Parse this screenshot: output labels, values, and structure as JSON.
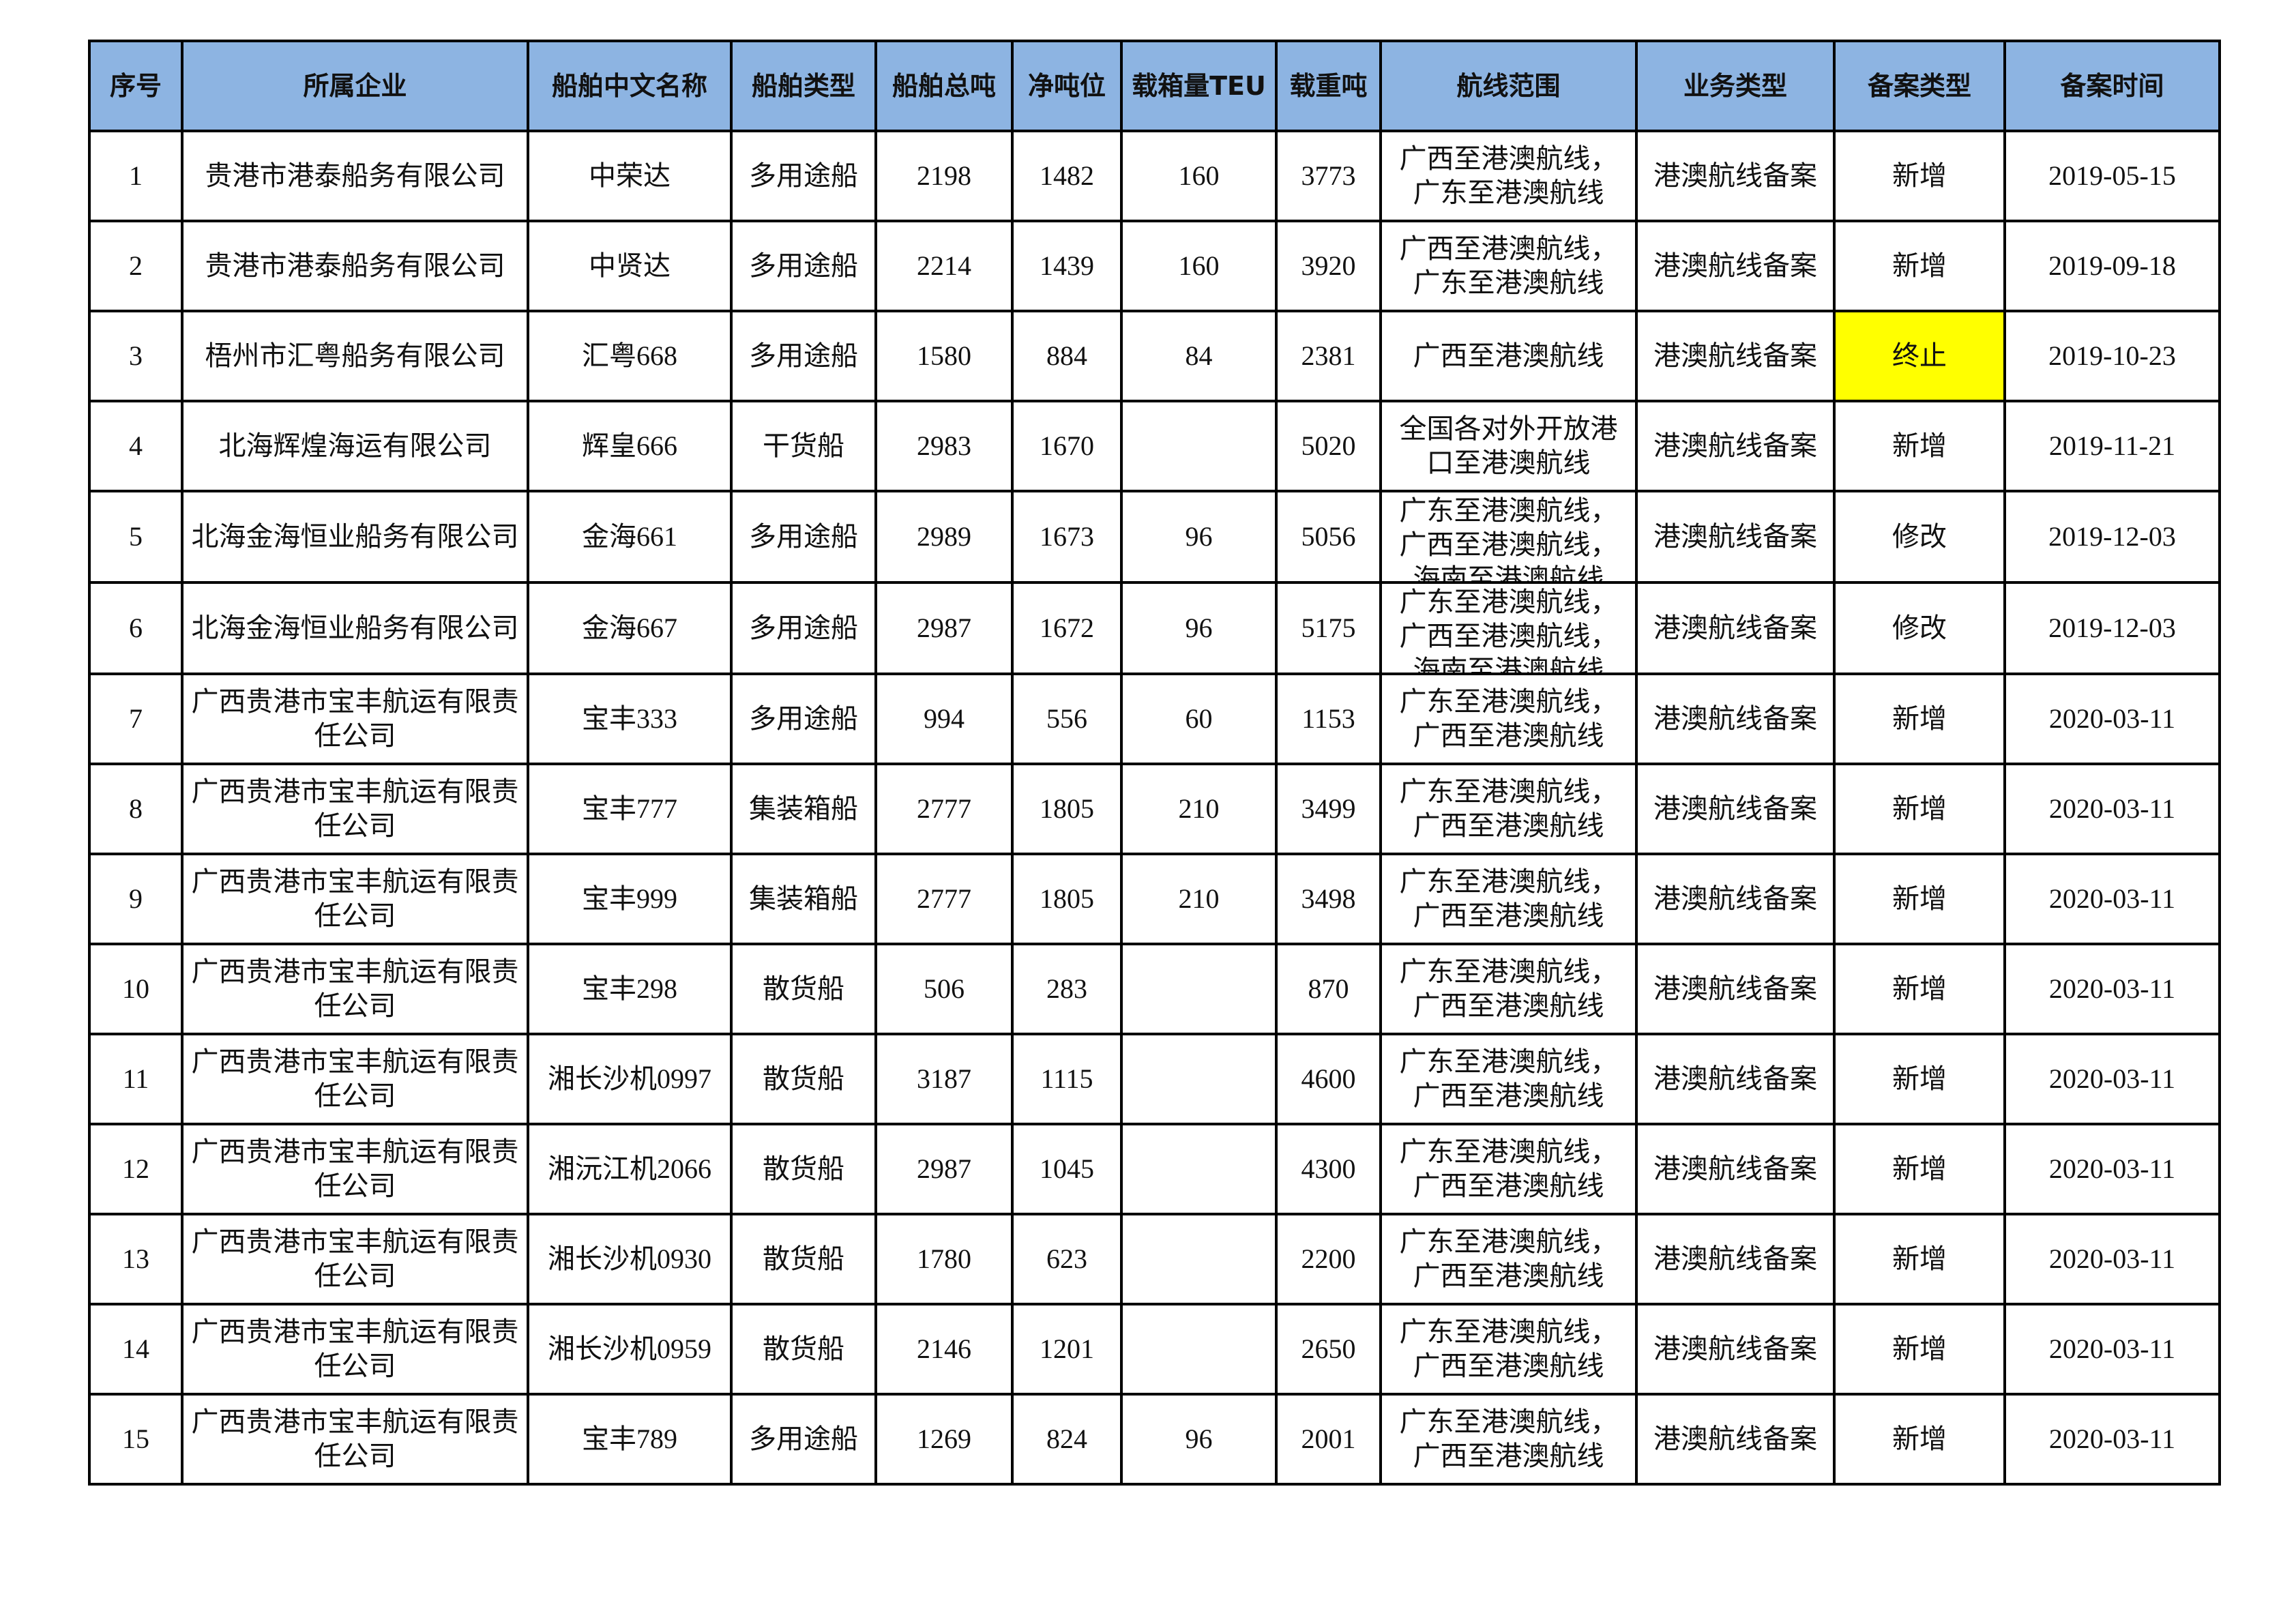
{
  "headers": [
    "序号",
    "所属企业",
    "船舶中文名称",
    "船舶类型",
    "船舶总吨",
    "净吨位",
    "载箱量TEU",
    "载重吨",
    "航线范围",
    "业务类型",
    "备案类型",
    "备案时间"
  ],
  "highlight_color": "#FFFF00",
  "header_color": "#8DB4E2",
  "rows": [
    [
      "1",
      "贵港市港泰船务有限公司",
      "中荣达",
      "多用途船",
      "2198",
      "1482",
      "160",
      "3773",
      "广西至港澳航线，广东至港澳航线",
      "港澳航线备案",
      "新增",
      "2019-05-15"
    ],
    [
      "2",
      "贵港市港泰船务有限公司",
      "中贤达",
      "多用途船",
      "2214",
      "1439",
      "160",
      "3920",
      "广西至港澳航线，广东至港澳航线",
      "港澳航线备案",
      "新增",
      "2019-09-18"
    ],
    [
      "3",
      "梧州市汇粤船务有限公司",
      "汇粤668",
      "多用途船",
      "1580",
      "884",
      "84",
      "2381",
      "广西至港澳航线",
      "港澳航线备案",
      "终止",
      "2019-10-23"
    ],
    [
      "4",
      "北海辉煌海运有限公司",
      "辉皇666",
      "干货船",
      "2983",
      "1670",
      "",
      "5020",
      "全国各对外开放港口至港澳航线",
      "港澳航线备案",
      "新增",
      "2019-11-21"
    ],
    [
      "5",
      "北海金海恒业船务有限公司",
      "金海661",
      "多用途船",
      "2989",
      "1673",
      "96",
      "5056",
      "广东至港澳航线，广西至港澳航线，海南至港澳航线",
      "港澳航线备案",
      "修改",
      "2019-12-03"
    ],
    [
      "6",
      "北海金海恒业船务有限公司",
      "金海667",
      "多用途船",
      "2987",
      "1672",
      "96",
      "5175",
      "广东至港澳航线，广西至港澳航线，海南至港澳航线",
      "港澳航线备案",
      "修改",
      "2019-12-03"
    ],
    [
      "7",
      "广西贵港市宝丰航运有限责任公司",
      "宝丰333",
      "多用途船",
      "994",
      "556",
      "60",
      "1153",
      "广东至港澳航线，广西至港澳航线",
      "港澳航线备案",
      "新增",
      "2020-03-11"
    ],
    [
      "8",
      "广西贵港市宝丰航运有限责任公司",
      "宝丰777",
      "集装箱船",
      "2777",
      "1805",
      "210",
      "3499",
      "广东至港澳航线，广西至港澳航线",
      "港澳航线备案",
      "新增",
      "2020-03-11"
    ],
    [
      "9",
      "广西贵港市宝丰航运有限责任公司",
      "宝丰999",
      "集装箱船",
      "2777",
      "1805",
      "210",
      "3498",
      "广东至港澳航线，广西至港澳航线",
      "港澳航线备案",
      "新增",
      "2020-03-11"
    ],
    [
      "10",
      "广西贵港市宝丰航运有限责任公司",
      "宝丰298",
      "散货船",
      "506",
      "283",
      "",
      "870",
      "广东至港澳航线，广西至港澳航线",
      "港澳航线备案",
      "新增",
      "2020-03-11"
    ],
    [
      "11",
      "广西贵港市宝丰航运有限责任公司",
      "湘长沙机0997",
      "散货船",
      "3187",
      "1115",
      "",
      "4600",
      "广东至港澳航线，广西至港澳航线",
      "港澳航线备案",
      "新增",
      "2020-03-11"
    ],
    [
      "12",
      "广西贵港市宝丰航运有限责任公司",
      "湘沅江机2066",
      "散货船",
      "2987",
      "1045",
      "",
      "4300",
      "广东至港澳航线，广西至港澳航线",
      "港澳航线备案",
      "新增",
      "2020-03-11"
    ],
    [
      "13",
      "广西贵港市宝丰航运有限责任公司",
      "湘长沙机0930",
      "散货船",
      "1780",
      "623",
      "",
      "2200",
      "广东至港澳航线，广西至港澳航线",
      "港澳航线备案",
      "新增",
      "2020-03-11"
    ],
    [
      "14",
      "广西贵港市宝丰航运有限责任公司",
      "湘长沙机0959",
      "散货船",
      "2146",
      "1201",
      "",
      "2650",
      "广东至港澳航线，广西至港澳航线",
      "港澳航线备案",
      "新增",
      "2020-03-11"
    ],
    [
      "15",
      "广西贵港市宝丰航运有限责任公司",
      "宝丰789",
      "多用途船",
      "1269",
      "824",
      "96",
      "2001",
      "广东至港澳航线，广西至港澳航线",
      "港澳航线备案",
      "新增",
      "2020-03-11"
    ]
  ]
}
